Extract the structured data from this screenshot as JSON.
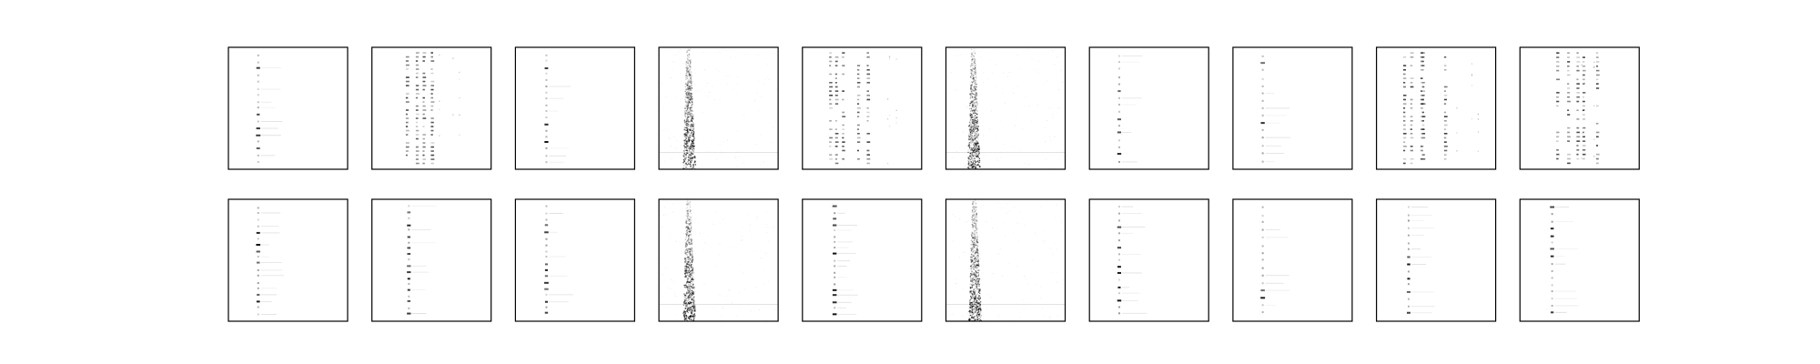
{
  "figure": {
    "background": "#ffffff",
    "frame_color": "#000000",
    "ink_color": "#000000"
  },
  "chart_data": {
    "type": "heatmap",
    "rows": 2,
    "cols": 10,
    "x_range": [
      0,
      1
    ],
    "y_range": [
      0,
      1
    ],
    "colormap": "gray_r",
    "axis_ticks": false,
    "grid": false,
    "panels": [
      {
        "row": 0,
        "col": 0,
        "pattern": "dotted-column",
        "column_x": 0.25,
        "bands": 0.55
      },
      {
        "row": 0,
        "col": 1,
        "pattern": "dense-columns",
        "column_x": 0.33,
        "bands": 0.85
      },
      {
        "row": 0,
        "col": 2,
        "pattern": "dotted-column",
        "column_x": 0.26,
        "bands": 0.6
      },
      {
        "row": 0,
        "col": 3,
        "pattern": "noise-column",
        "column_x": 0.24,
        "bands": 0.9
      },
      {
        "row": 0,
        "col": 4,
        "pattern": "dense-columns",
        "column_x": 0.27,
        "bands": 0.75
      },
      {
        "row": 0,
        "col": 5,
        "pattern": "noise-column",
        "column_x": 0.22,
        "bands": 0.95
      },
      {
        "row": 0,
        "col": 6,
        "pattern": "dotted-column",
        "column_x": 0.25,
        "bands": 0.45
      },
      {
        "row": 0,
        "col": 7,
        "pattern": "dotted-column",
        "column_x": 0.25,
        "bands": 0.3
      },
      {
        "row": 0,
        "col": 8,
        "pattern": "dense-columns",
        "column_x": 0.27,
        "bands": 0.8
      },
      {
        "row": 0,
        "col": 9,
        "pattern": "dense-columns",
        "column_x": 0.35,
        "bands": 0.7
      },
      {
        "row": 1,
        "col": 0,
        "pattern": "dotted-column",
        "column_x": 0.25,
        "bands": 0.6
      },
      {
        "row": 1,
        "col": 1,
        "pattern": "dotted-column",
        "column_x": 0.31,
        "bands": 0.7
      },
      {
        "row": 1,
        "col": 2,
        "pattern": "dotted-column",
        "column_x": 0.26,
        "bands": 0.65
      },
      {
        "row": 1,
        "col": 3,
        "pattern": "noise-column",
        "column_x": 0.24,
        "bands": 0.9
      },
      {
        "row": 1,
        "col": 4,
        "pattern": "dotted-column",
        "column_x": 0.27,
        "bands": 0.7
      },
      {
        "row": 1,
        "col": 5,
        "pattern": "noise-column",
        "column_x": 0.23,
        "bands": 0.95
      },
      {
        "row": 1,
        "col": 6,
        "pattern": "dotted-column",
        "column_x": 0.25,
        "bands": 0.5
      },
      {
        "row": 1,
        "col": 7,
        "pattern": "dotted-column",
        "column_x": 0.25,
        "bands": 0.35
      },
      {
        "row": 1,
        "col": 8,
        "pattern": "dotted-column",
        "column_x": 0.27,
        "bands": 0.4
      },
      {
        "row": 1,
        "col": 9,
        "pattern": "dotted-column",
        "column_x": 0.27,
        "bands": 0.45
      }
    ]
  }
}
